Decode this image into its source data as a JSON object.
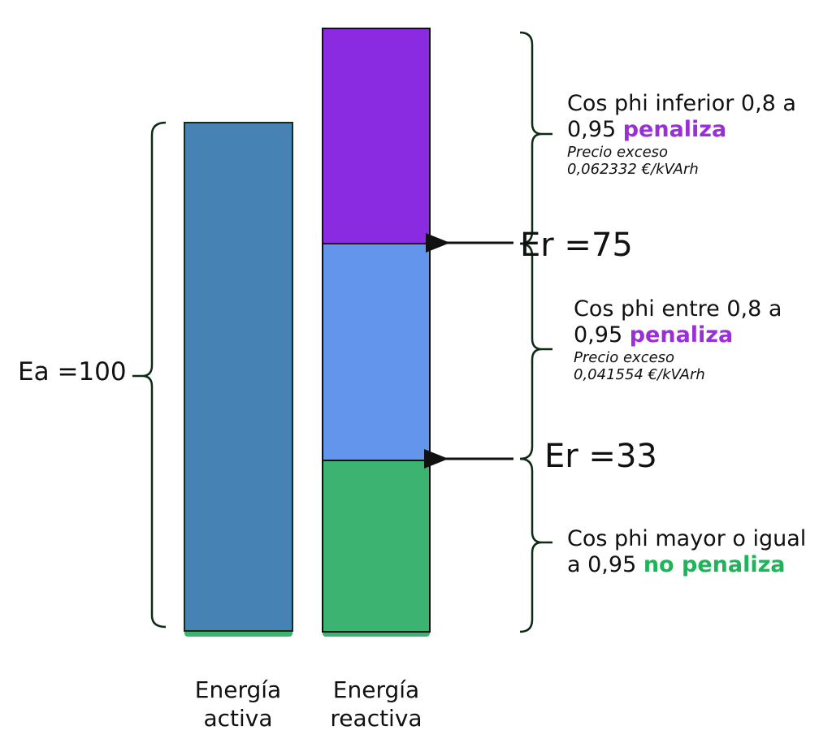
{
  "colors": {
    "active": "#4682b4",
    "reactive_high": "#8a2be2",
    "reactive_mid": "#6495ed",
    "reactive_low": "#3cb371",
    "penaliza": "#9a2fd8",
    "no_penaliza": "#1fb45a"
  },
  "active": {
    "label": "Ea =100",
    "bar_label_1": "Energía",
    "bar_label_2": "activa"
  },
  "reactive": {
    "bar_label_1": "Energía",
    "bar_label_2": "reactiva"
  },
  "thresholds": [
    {
      "label": "Er =75"
    },
    {
      "label": "Er =33"
    }
  ],
  "zones": [
    {
      "line1": "Cos phi inferior 0,8 a",
      "line2_prefix": "0,95 ",
      "line2_emph": "penaliza",
      "price_label": "Precio exceso",
      "price": "0,062332 €/kVArh"
    },
    {
      "line1": "Cos phi entre 0,8 a",
      "line2_prefix": "0,95 ",
      "line2_emph": "penaliza",
      "price_label": "Precio exceso",
      "price": "0,041554 €/kVArh"
    },
    {
      "line1": "Cos phi mayor o igual",
      "line2_prefix": "a 0,95 ",
      "line2_emph": "no penaliza"
    }
  ]
}
